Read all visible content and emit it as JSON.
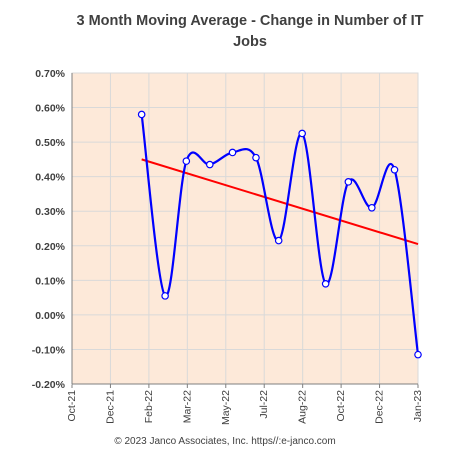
{
  "chart_data": {
    "type": "line",
    "title": "3 Month Moving Average - Change in Number of IT\nJobs",
    "caption": "© 2023 Janco Associates, Inc. https//:e-janco.com",
    "xlabel": "",
    "ylabel": "",
    "ylim": [
      -0.2,
      0.7
    ],
    "y_ticks": [
      "0.70%",
      "0.60%",
      "0.50%",
      "0.40%",
      "0.30%",
      "0.20%",
      "0.10%",
      "0.00%",
      "-0.10%",
      "-0.20%"
    ],
    "x_ticks": [
      "Oct-21",
      "Dec-21",
      "Feb-22",
      "Mar-22",
      "May-22",
      "Jul-22",
      "Aug-22",
      "Oct-22",
      "Dec-22",
      "Jan-23"
    ],
    "x_range": [
      "2021-10-01",
      "2023-01-01"
    ],
    "grid": true,
    "legend": "none",
    "series": [
      {
        "x": [
          "2022-01-01",
          "2022-02-01",
          "2022-03-01",
          "2022-04-01",
          "2022-05-01",
          "2022-06-01",
          "2022-07-01",
          "2022-08-01",
          "2022-09-01",
          "2022-10-01",
          "2022-11-01",
          "2022-12-01",
          "2023-01-01"
        ],
        "values": [
          0.58,
          0.055,
          0.445,
          0.435,
          0.47,
          0.455,
          0.215,
          0.525,
          0.09,
          0.385,
          0.31,
          0.42,
          -0.115
        ],
        "color": "#0000FF",
        "smooth": true
      }
    ],
    "trendline": {
      "x": [
        "2022-01-01",
        "2023-01-01"
      ],
      "values": [
        0.45,
        0.205
      ],
      "color": "#FF0000"
    }
  },
  "colors": {
    "plot_background": "#FDE9D9",
    "grid": "#D9D9D9",
    "axis": "#7F7F7F",
    "marker_fill": "#FFFFFF"
  }
}
